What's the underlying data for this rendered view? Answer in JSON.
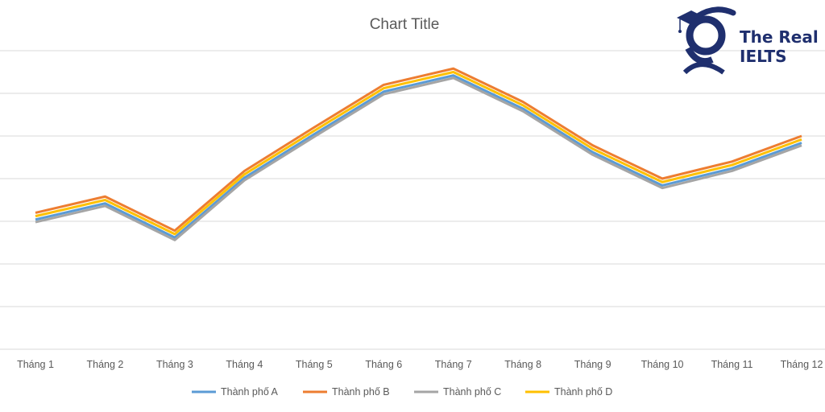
{
  "chart_data": {
    "type": "line",
    "title": "Chart Title",
    "xlabel": "",
    "ylabel": "",
    "categories": [
      "Tháng 1",
      "Tháng 2",
      "Tháng 3",
      "Tháng 4",
      "Tháng 5",
      "Tháng 6",
      "Tháng 7",
      "Tháng 8",
      "Tháng 9",
      "Tháng 10",
      "Tháng 11",
      "Tháng 12"
    ],
    "ylim": [
      0,
      35
    ],
    "y_tick_step": 5,
    "grid": true,
    "y_tick_labels_shown": false,
    "legend_position": "bottom",
    "series": [
      {
        "name": "Thành phố A",
        "color": "#5B9BD5",
        "values": [
          15.2,
          17.1,
          13.1,
          20.1,
          25.2,
          30.2,
          32.1,
          28.2,
          23.1,
          19.2,
          21.2,
          24.2
        ]
      },
      {
        "name": "Thành phố B",
        "color": "#ED7D31",
        "values": [
          16.0,
          17.9,
          13.9,
          20.9,
          26.0,
          31.0,
          32.9,
          29.0,
          23.9,
          20.0,
          22.0,
          25.0
        ]
      },
      {
        "name": "Thành phố C",
        "color": "#A5A5A5",
        "values": [
          14.9,
          16.8,
          12.8,
          19.8,
          24.9,
          29.9,
          31.8,
          27.9,
          22.8,
          18.9,
          20.9,
          23.9
        ]
      },
      {
        "name": "Thành phố D",
        "color": "#FFC000",
        "values": [
          15.6,
          17.5,
          13.5,
          20.5,
          25.6,
          30.6,
          32.5,
          28.6,
          23.5,
          19.6,
          21.6,
          24.6
        ]
      }
    ]
  },
  "logo": {
    "text_line1": "The Real",
    "text_line2": "IELTS",
    "color": "#1F2F6E"
  }
}
